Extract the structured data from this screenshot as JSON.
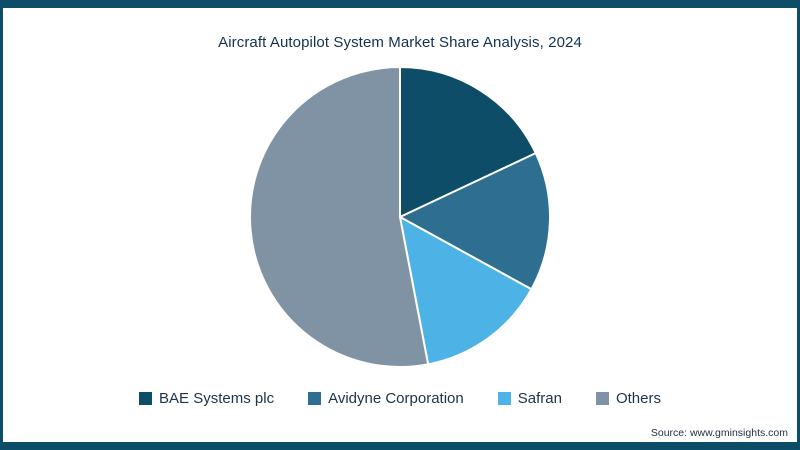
{
  "page": {
    "frame_color": "#0e4d68",
    "background_color": "#ffffff",
    "source_text": "Source: www.gminsights.com"
  },
  "chart_data": {
    "type": "pie",
    "title": "Aircraft Autopilot System Market Share Analysis, 2024",
    "start_angle_deg": 0,
    "direction": "clockwise",
    "values_are": "estimated market share percent (no data labels shown in figure)",
    "slices": [
      {
        "label": "BAE Systems plc",
        "value": 18,
        "color": "#0e4d68"
      },
      {
        "label": "Avidyne Corporation",
        "value": 15,
        "color": "#2e6e91"
      },
      {
        "label": "Safran",
        "value": 14,
        "color": "#4db3e6"
      },
      {
        "label": "Others",
        "value": 53,
        "color": "#8093a5"
      }
    ],
    "legend_position": "bottom",
    "slice_border_color": "#ffffff",
    "title_color": "#14324f",
    "legend_text_color": "#1e3248"
  }
}
